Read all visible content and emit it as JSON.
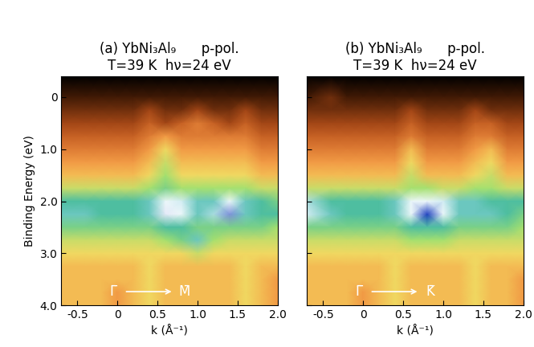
{
  "chart_data": [
    {
      "type": "heatmap",
      "title": "(a) YbNi₃Al₉      p-pol.\nT=39 K  hν=24 eV",
      "x_label": "k (Å⁻¹)",
      "y_label": "Binding Energy (eV)",
      "annotations": [
        "Γ̄",
        "M̄"
      ],
      "tick_labels": true,
      "xlim": [
        -0.7,
        2.0
      ],
      "ylim": [
        4.0,
        -0.4
      ],
      "xticks": [
        -0.5,
        0,
        0.5,
        {
          "value": 1.0,
          "label": "1.0"
        },
        1.5,
        {
          "value": 2.0,
          "label": "2.0"
        }
      ],
      "yticks": [
        0,
        {
          "value": 1.0,
          "label": "1.0"
        },
        {
          "value": 2.0,
          "label": "2.0"
        },
        {
          "value": 3.0,
          "label": "3.0"
        },
        {
          "value": 4.0,
          "label": "4.0"
        }
      ],
      "zlim": [
        0,
        10
      ],
      "x": [
        -0.7,
        -0.4,
        -0.2,
        0,
        0.2,
        0.4,
        0.6,
        0.8,
        1.0,
        1.2,
        1.4,
        1.6,
        1.8,
        2.0
      ],
      "y": [
        -0.4,
        0,
        0.25,
        0.5,
        0.75,
        1.0,
        1.25,
        1.5,
        1.75,
        2.0,
        2.25,
        2.5,
        2.75,
        3.0,
        3.25,
        3.5,
        3.75,
        4.0
      ],
      "z": [
        [
          0,
          0,
          0,
          0,
          0,
          0,
          0,
          0,
          0,
          0,
          0,
          0,
          0,
          0
        ],
        [
          1,
          1,
          1,
          1,
          1,
          1,
          1,
          1,
          1,
          1,
          1,
          1,
          1,
          1
        ],
        [
          1.5,
          1.5,
          1.5,
          1.5,
          1.5,
          2,
          1.5,
          1.5,
          2,
          1.5,
          1.5,
          2,
          1.5,
          1.5
        ],
        [
          2,
          2,
          2,
          2,
          2,
          2.5,
          2,
          2.5,
          3,
          2.5,
          2,
          2.5,
          2,
          2
        ],
        [
          2.5,
          2.5,
          2.5,
          2.5,
          2.5,
          3,
          3.5,
          3,
          3,
          3,
          3,
          3,
          2.5,
          2.5
        ],
        [
          3,
          3,
          3,
          3,
          3,
          3.5,
          4.5,
          3.5,
          3.5,
          3.5,
          3.5,
          3.5,
          3,
          3
        ],
        [
          3.5,
          3.5,
          3.5,
          3.5,
          3.5,
          4,
          5,
          4,
          4,
          4,
          4,
          4,
          3.5,
          3.5
        ],
        [
          4,
          4,
          4,
          4,
          4,
          4.5,
          5.5,
          4.5,
          4.5,
          4.5,
          4.5,
          4.5,
          4,
          4
        ],
        [
          5,
          5,
          5,
          5,
          5,
          5.5,
          6,
          5.5,
          5.5,
          5.5,
          5.5,
          5.5,
          5,
          5
        ],
        [
          6.5,
          6.5,
          6.5,
          6.5,
          6.5,
          7,
          8.5,
          8,
          7,
          7,
          8.5,
          7,
          6.5,
          6
        ],
        [
          7,
          7,
          6.5,
          6.5,
          6.5,
          7,
          9,
          8.5,
          7,
          7.5,
          9.5,
          7,
          6.5,
          6.5
        ],
        [
          6,
          6,
          6,
          6,
          6,
          6,
          6.5,
          6.5,
          6,
          6,
          6,
          6,
          6,
          5.5
        ],
        [
          5,
          5,
          5,
          5,
          5,
          5,
          5.5,
          6,
          7,
          5.5,
          5,
          5,
          5,
          5
        ],
        [
          4.5,
          4.5,
          4.5,
          4.5,
          4.5,
          4.5,
          4.5,
          4.5,
          5,
          4.5,
          4.5,
          4.5,
          4.5,
          4.5
        ],
        [
          4,
          4,
          4,
          4,
          4,
          4.5,
          4,
          4,
          4,
          4,
          4,
          4.5,
          4,
          4
        ],
        [
          4,
          4,
          4,
          4,
          4,
          4.5,
          4,
          4,
          4,
          4,
          4,
          4.5,
          4,
          3.5
        ],
        [
          4,
          4,
          4,
          3.5,
          4,
          4.5,
          4,
          4,
          4,
          4,
          4,
          4.5,
          4,
          3.5
        ],
        [
          4,
          4,
          4,
          3.5,
          4,
          4.5,
          4,
          4,
          4,
          4,
          4,
          4.5,
          4,
          3.5
        ]
      ]
    },
    {
      "type": "heatmap",
      "title": "(b) YbNi₃Al₉      p-pol.\nT=39 K  hν=24 eV",
      "x_label": "k (Å⁻¹)",
      "annotations": [
        "Γ̄",
        "K̄"
      ],
      "tick_labels": "x",
      "xlim": [
        -0.7,
        2.0
      ],
      "ylim": [
        4.0,
        -0.4
      ],
      "xticks": [
        -0.5,
        0,
        0.5,
        {
          "value": 1.0,
          "label": "1.0"
        },
        1.5,
        {
          "value": 2.0,
          "label": "2.0"
        }
      ],
      "yticks": [
        0,
        1.0,
        2.0,
        3.0,
        4.0
      ],
      "zlim": [
        0,
        10
      ],
      "x": [
        -0.7,
        -0.4,
        -0.2,
        0,
        0.2,
        0.4,
        0.6,
        0.8,
        1.0,
        1.2,
        1.4,
        1.6,
        1.8,
        2.0
      ],
      "y": [
        -0.4,
        0,
        0.25,
        0.5,
        0.75,
        1.0,
        1.25,
        1.5,
        1.75,
        2.0,
        2.25,
        2.5,
        2.75,
        3.0,
        3.25,
        3.5,
        3.75,
        4.0
      ],
      "z": [
        [
          0,
          0,
          0,
          0,
          0,
          0,
          0,
          0,
          0,
          0,
          0,
          0,
          0,
          0
        ],
        [
          1,
          1.5,
          1,
          1,
          1,
          1,
          1,
          1,
          1,
          1,
          1,
          1,
          1,
          1
        ],
        [
          1.5,
          1.5,
          1.5,
          1.5,
          1.5,
          1.5,
          2,
          1.5,
          1.5,
          1.5,
          2,
          1.5,
          1.5,
          1.5
        ],
        [
          2,
          2,
          2,
          2,
          2,
          2,
          2.5,
          2,
          2,
          2,
          2.5,
          2.5,
          2,
          2
        ],
        [
          2.5,
          2.5,
          2.5,
          2.5,
          2.5,
          2.5,
          3,
          2.5,
          2.5,
          2.5,
          3,
          3,
          2.5,
          2.5
        ],
        [
          3,
          3,
          3,
          3,
          3,
          3,
          4,
          3,
          3,
          3,
          3.5,
          4,
          3,
          3
        ],
        [
          3.5,
          3.5,
          3.5,
          3.5,
          3.5,
          3.5,
          4.5,
          3.5,
          3.5,
          3.5,
          4,
          4.5,
          3.5,
          3.5
        ],
        [
          4,
          4,
          4,
          4,
          4,
          4,
          5,
          4,
          4,
          4,
          4.5,
          5,
          4,
          4
        ],
        [
          5,
          5,
          5,
          5,
          5,
          5,
          5.5,
          5.5,
          5,
          5,
          5.5,
          5.5,
          5,
          5
        ],
        [
          7.5,
          6.5,
          6.5,
          6.5,
          6.5,
          7,
          8.5,
          8.5,
          8,
          7,
          7,
          6.5,
          6.5,
          6.5
        ],
        [
          8,
          7,
          6.5,
          6.5,
          6.5,
          7,
          8.5,
          10,
          8.5,
          7,
          7,
          7,
          6.5,
          6
        ],
        [
          6,
          6,
          6,
          6,
          6,
          6,
          6.5,
          6.5,
          6.5,
          6,
          6,
          6,
          6,
          5.5
        ],
        [
          5,
          5,
          5,
          5,
          5,
          5,
          5.5,
          5.5,
          5.5,
          5,
          5,
          5,
          5,
          5
        ],
        [
          4.5,
          4.5,
          4.5,
          4.5,
          4.5,
          4.5,
          4.5,
          4.5,
          4.5,
          4.5,
          4.5,
          4.5,
          4.5,
          4.5
        ],
        [
          4,
          4,
          4,
          4,
          4,
          4.5,
          4,
          4,
          4,
          4,
          4.5,
          4,
          4,
          4
        ],
        [
          4,
          4,
          4,
          4,
          4,
          4.5,
          4,
          4,
          4,
          4,
          4.5,
          4,
          4,
          3.5
        ],
        [
          4,
          4,
          4,
          3.5,
          4,
          4.5,
          4,
          4,
          4,
          4,
          4.5,
          4,
          4,
          3.5
        ],
        [
          4,
          4,
          4,
          3.5,
          4,
          4.5,
          4,
          4,
          4,
          4,
          4.5,
          4,
          4,
          3.5
        ]
      ]
    }
  ]
}
